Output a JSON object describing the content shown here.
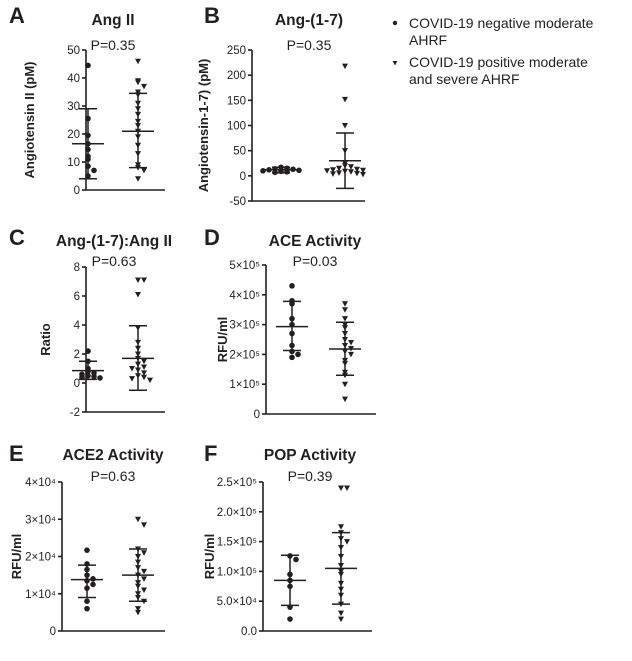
{
  "legend": {
    "entries": [
      {
        "label_lines": [
          "COVID-19 negative moderate",
          "AHRF"
        ],
        "marker": "circle"
      },
      {
        "label_lines": [
          "COVID-19 positive moderate",
          "and severe AHRF"
        ],
        "marker": "triangle"
      }
    ]
  },
  "colors": {
    "ink": "#231f20"
  },
  "chart_data": [
    {
      "type": "scatter",
      "letter": "A",
      "title": "Ang II",
      "pvalue": "P=0.35",
      "ylabel": "Angiotensin II (pM)",
      "ylim": [
        0,
        50
      ],
      "yticks": [
        0,
        10,
        20,
        30,
        40,
        50
      ],
      "yticklabels": [
        "0",
        "10",
        "20",
        "30",
        "40",
        "50"
      ],
      "groups": [
        {
          "marker": "circle",
          "mean": 16.5,
          "sd_low": 4,
          "sd_high": 29,
          "points": [
            44.5,
            25.5,
            19.5,
            16.5,
            14.5,
            12,
            11,
            8.5,
            7,
            5
          ]
        },
        {
          "marker": "triangle",
          "mean": 21,
          "sd_low": 8,
          "sd_high": 34.5,
          "points": [
            46,
            39,
            38.5,
            37,
            35,
            34,
            31,
            29,
            27,
            24.5,
            23,
            21,
            19,
            16,
            13,
            9,
            8,
            7,
            4
          ]
        }
      ]
    },
    {
      "type": "scatter",
      "letter": "B",
      "title": "Ang-(1-7)",
      "pvalue": "P=0.35",
      "ylabel": "Angiotensin-1-7) (pM)",
      "ylim": [
        -50,
        250
      ],
      "yticks": [
        -50,
        0,
        50,
        100,
        150,
        200,
        250
      ],
      "yticklabels": [
        "-50",
        "0",
        "50",
        "100",
        "150",
        "200",
        "250"
      ],
      "groups": [
        {
          "marker": "circle",
          "mean": 12,
          "sd_low": 6,
          "sd_high": 17,
          "points": [
            17,
            15,
            14,
            13,
            12,
            11,
            10,
            9,
            8,
            7
          ]
        },
        {
          "marker": "triangle",
          "mean": 30,
          "sd_low": -25,
          "sd_high": 85,
          "points": [
            218,
            152,
            100,
            50,
            25,
            20,
            18,
            15,
            13,
            12,
            11,
            10,
            9,
            8,
            6,
            5,
            4,
            3
          ]
        }
      ]
    },
    {
      "type": "scatter",
      "letter": "C",
      "title": "Ang-(1-7):Ang II",
      "pvalue": "P=0.63",
      "ylabel": "Ratio",
      "ylim": [
        -2,
        8
      ],
      "yticks": [
        -2,
        0,
        2,
        4,
        6,
        8
      ],
      "yticklabels": [
        "-2",
        "0",
        "2",
        "4",
        "6",
        "8"
      ],
      "groups": [
        {
          "marker": "circle",
          "mean": 0.85,
          "sd_low": 0.25,
          "sd_high": 1.5,
          "points": [
            2.2,
            1.5,
            1.0,
            0.8,
            0.7,
            0.6,
            0.5,
            0.45,
            0.4,
            0.35
          ]
        },
        {
          "marker": "triangle",
          "mean": 1.7,
          "sd_low": -0.5,
          "sd_high": 3.95,
          "points": [
            7.1,
            7.1,
            6.1,
            3.8,
            2.8,
            2.4,
            2.0,
            1.7,
            1.5,
            1.3,
            1.1,
            1.0,
            0.9,
            0.7,
            0.5,
            0.4,
            0.3,
            0.2
          ]
        }
      ]
    },
    {
      "type": "scatter",
      "letter": "D",
      "title": "ACE Activity",
      "pvalue": "P=0.03",
      "ylabel": "RFU/ml",
      "ylim": [
        0,
        500000
      ],
      "yticks": [
        0,
        100000,
        200000,
        300000,
        400000,
        500000
      ],
      "yticklabels": [
        "0",
        "1×10⁵",
        "2×10⁵",
        "3×10⁵",
        "4×10⁵",
        "5×10⁵"
      ],
      "groups": [
        {
          "marker": "circle",
          "mean": 293000,
          "sd_low": 213000,
          "sd_high": 378000,
          "points": [
            430000,
            380000,
            370000,
            320000,
            300000,
            270000,
            230000,
            210000,
            200000,
            190000
          ]
        },
        {
          "marker": "triangle",
          "mean": 218000,
          "sd_low": 130000,
          "sd_high": 308000,
          "points": [
            370000,
            350000,
            320000,
            300000,
            290000,
            270000,
            250000,
            240000,
            230000,
            220000,
            210000,
            200000,
            180000,
            170000,
            140000,
            130000,
            100000,
            50000
          ]
        }
      ]
    },
    {
      "type": "scatter",
      "letter": "E",
      "title": "ACE2 Activity",
      "pvalue": "P=0.63",
      "ylabel": "RFU/ml",
      "ylim": [
        0,
        40000
      ],
      "yticks": [
        0,
        10000,
        20000,
        30000,
        40000
      ],
      "yticklabels": [
        "0",
        "1×10⁴",
        "2×10⁴",
        "3×10⁴",
        "4×10⁴"
      ],
      "groups": [
        {
          "marker": "circle",
          "mean": 13800,
          "sd_low": 9000,
          "sd_high": 17700,
          "points": [
            21700,
            18000,
            16500,
            15000,
            14000,
            13500,
            12500,
            11500,
            8000,
            6000
          ]
        },
        {
          "marker": "triangle",
          "mean": 15000,
          "sd_low": 8000,
          "sd_high": 22000,
          "points": [
            30000,
            28500,
            22000,
            21000,
            20000,
            18500,
            17000,
            16000,
            15000,
            14000,
            13000,
            12000,
            11000,
            10000,
            9000,
            8000,
            6000,
            5000
          ]
        }
      ]
    },
    {
      "type": "scatter",
      "letter": "F",
      "title": "POP Activity",
      "pvalue": "P=0.39",
      "ylabel": "RFU/ml",
      "ylim": [
        0,
        250000
      ],
      "yticks": [
        0,
        50000,
        100000,
        150000,
        200000,
        250000
      ],
      "yticklabels": [
        "0.0",
        "5.0×10⁴",
        "1.0×10⁵",
        "1.5×10⁵",
        "2.0×10⁵",
        "2.5×10⁵"
      ],
      "groups": [
        {
          "marker": "circle",
          "mean": 85000,
          "sd_low": 43000,
          "sd_high": 127000,
          "points": [
            126000,
            120000,
            95000,
            85000,
            75000,
            40000,
            20000
          ]
        },
        {
          "marker": "triangle",
          "mean": 105000,
          "sd_low": 45000,
          "sd_high": 165000,
          "points": [
            240000,
            240000,
            175000,
            165000,
            155000,
            150000,
            140000,
            125000,
            110000,
            100000,
            95000,
            80000,
            70000,
            60000,
            45000,
            30000,
            20000
          ]
        }
      ]
    }
  ]
}
